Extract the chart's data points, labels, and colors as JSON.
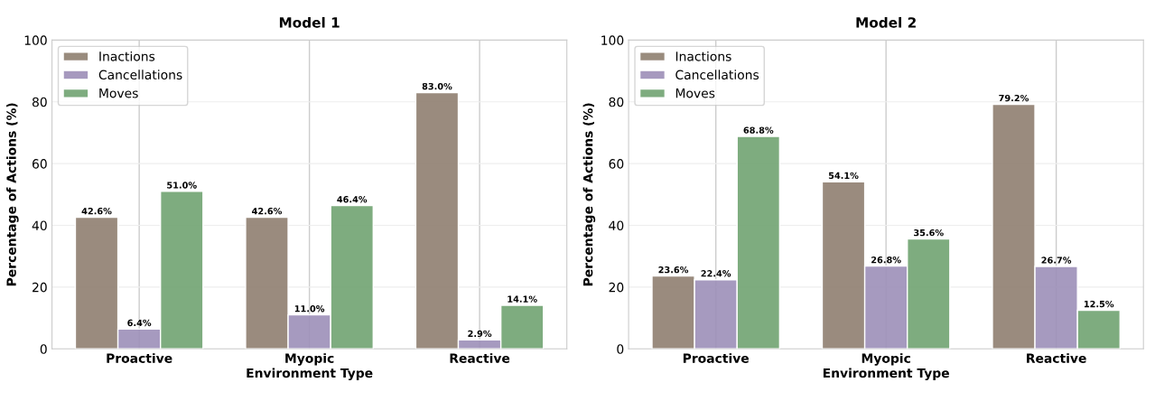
{
  "chart_data": [
    {
      "type": "bar",
      "title": "Model 1",
      "xlabel": "Environment Type",
      "ylabel": "Percentage of Actions (%)",
      "categories": [
        "Proactive",
        "Myopic",
        "Reactive"
      ],
      "ylim": [
        0,
        100
      ],
      "yticks": [
        0,
        20,
        40,
        60,
        80,
        100
      ],
      "grid": true,
      "legend": "top left",
      "series": [
        {
          "name": "Inactions",
          "color": "#8f7f70",
          "values": [
            42.6,
            42.6,
            83.0
          ],
          "value_labels": [
            "42.6%",
            "42.6%",
            "83.0%"
          ]
        },
        {
          "name": "Cancellations",
          "color": "#9d8fb8",
          "values": [
            6.4,
            11.0,
            2.9
          ],
          "value_labels": [
            "6.4%",
            "11.0%",
            "2.9%"
          ]
        },
        {
          "name": "Moves",
          "color": "#71a472",
          "values": [
            51.0,
            46.4,
            14.1
          ],
          "value_labels": [
            "51.0%",
            "46.4%",
            "14.1%"
          ]
        }
      ]
    },
    {
      "type": "bar",
      "title": "Model 2",
      "xlabel": "Environment Type",
      "ylabel": "Percentage of Actions (%)",
      "categories": [
        "Proactive",
        "Myopic",
        "Reactive"
      ],
      "ylim": [
        0,
        100
      ],
      "yticks": [
        0,
        20,
        40,
        60,
        80,
        100
      ],
      "grid": true,
      "legend": "top left",
      "series": [
        {
          "name": "Inactions",
          "color": "#8f7f70",
          "values": [
            23.6,
            54.1,
            79.2
          ],
          "value_labels": [
            "23.6%",
            "54.1%",
            "79.2%"
          ]
        },
        {
          "name": "Cancellations",
          "color": "#9d8fb8",
          "values": [
            22.4,
            26.8,
            26.7
          ],
          "value_labels": [
            "22.4%",
            "26.8%",
            "26.7%"
          ]
        },
        {
          "name": "Moves",
          "color": "#71a472",
          "values": [
            68.8,
            35.6,
            12.5
          ],
          "value_labels": [
            "68.8%",
            "35.6%",
            "12.5%"
          ]
        }
      ]
    }
  ]
}
